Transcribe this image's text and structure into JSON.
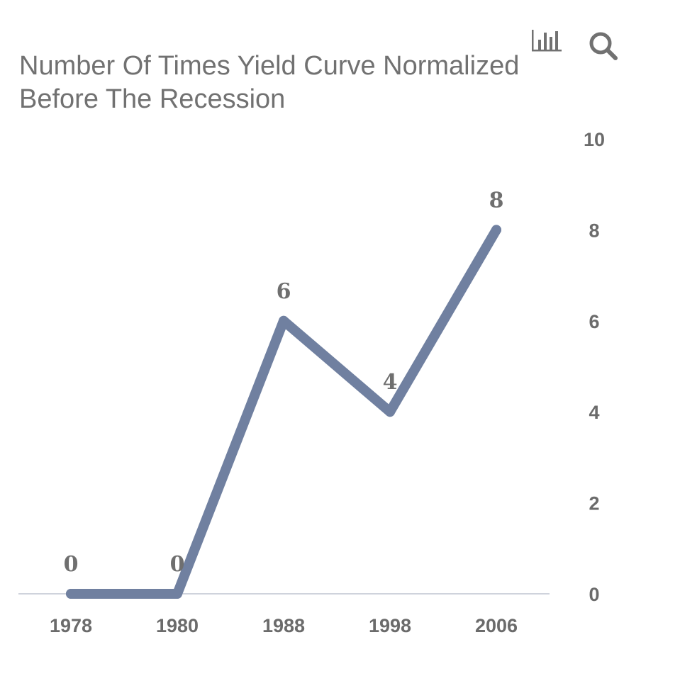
{
  "toolbar": {
    "chart_icon": "bar-chart-icon",
    "search_icon": "search-icon"
  },
  "chart_data": {
    "type": "line",
    "title_lines": [
      "Number Of Times Yield Curve Normalized",
      "Before The Recession"
    ],
    "categories": [
      "1978",
      "1980",
      "1988",
      "1998",
      "2006"
    ],
    "values": [
      0,
      0,
      6,
      4,
      8
    ],
    "data_labels": [
      "0",
      "0",
      "6",
      "4",
      "8"
    ],
    "y_ticks": [
      "0",
      "2",
      "4",
      "6",
      "8",
      "10"
    ],
    "ylim": [
      0,
      10
    ],
    "y_axis_position": "right",
    "grid": false,
    "legend": "none",
    "line_color": "#7080a0",
    "axis_color": "#cfd3dc",
    "text_color": "#6b6b6b"
  }
}
